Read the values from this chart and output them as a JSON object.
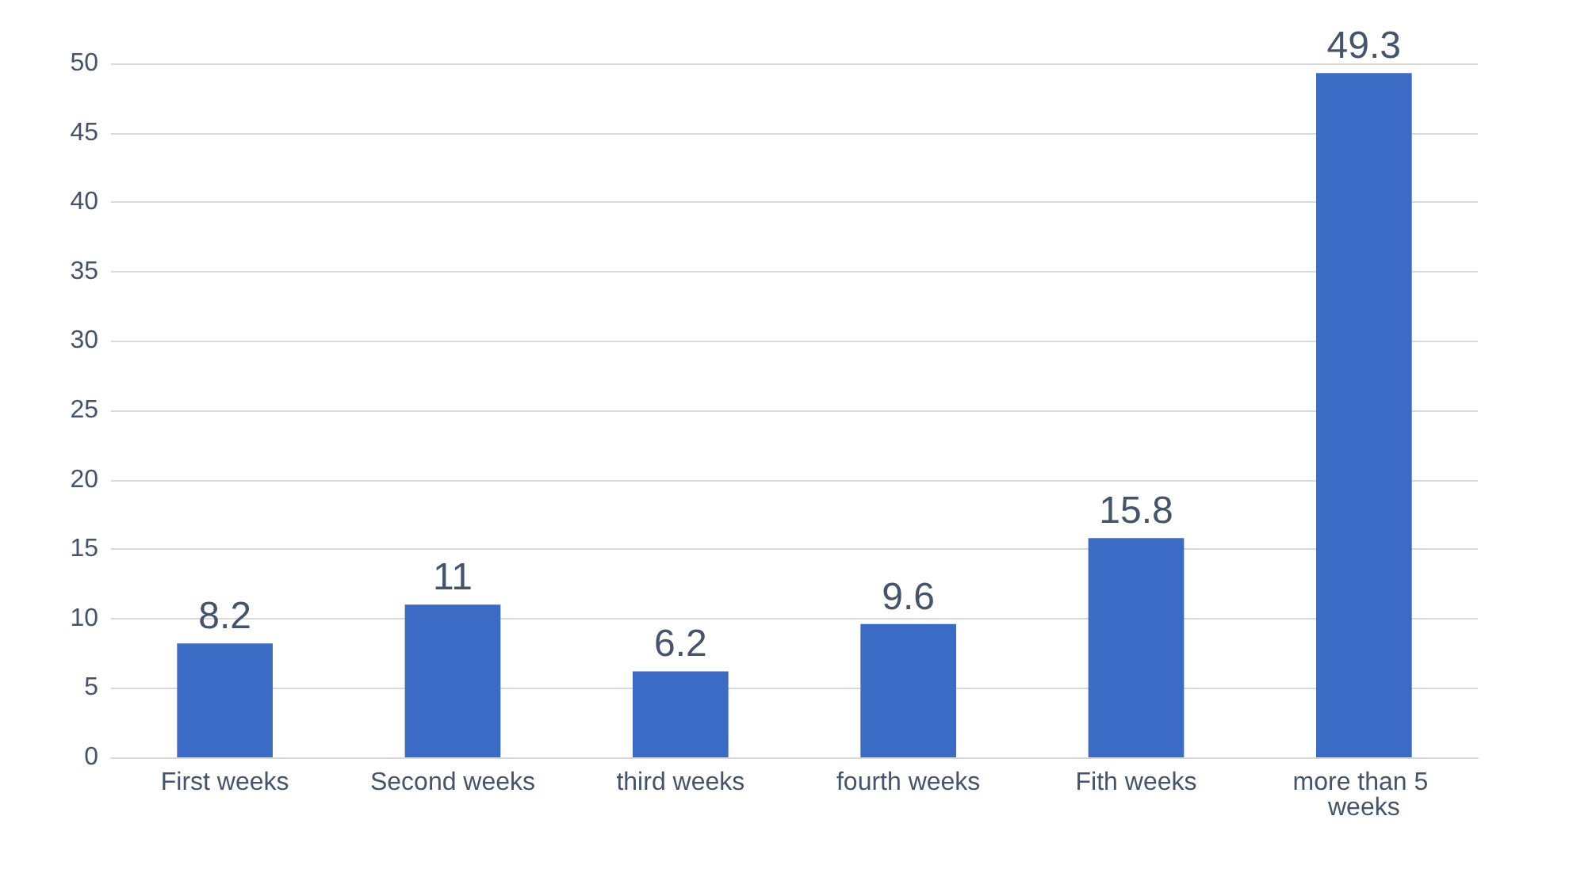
{
  "chart_data": {
    "type": "bar",
    "categories": [
      "First weeks",
      "Second weeks",
      "third weeks",
      "fourth weeks",
      "Fith weeks",
      "more than 5 weeks"
    ],
    "values": [
      8.2,
      11,
      6.2,
      9.6,
      15.8,
      49.3
    ],
    "color": "#3c6bc6",
    "ylim": [
      0,
      50
    ],
    "yticks": [
      0,
      5,
      10,
      15,
      20,
      25,
      30,
      35,
      40,
      45,
      50
    ],
    "grid": "y",
    "data_labels": true
  }
}
